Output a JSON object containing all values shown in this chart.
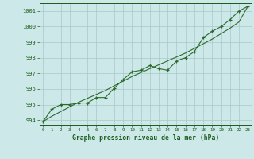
{
  "x_data": [
    0,
    1,
    2,
    3,
    4,
    5,
    6,
    7,
    8,
    9,
    10,
    11,
    12,
    13,
    14,
    15,
    16,
    17,
    18,
    19,
    20,
    21,
    22,
    23
  ],
  "y_measured": [
    993.9,
    994.7,
    995.0,
    995.0,
    995.1,
    995.1,
    995.45,
    995.45,
    996.05,
    996.6,
    997.1,
    997.2,
    997.5,
    997.3,
    997.2,
    997.8,
    998.0,
    998.4,
    999.3,
    999.7,
    1000.0,
    1000.45,
    1001.0,
    1001.3
  ],
  "y_trend": [
    993.9,
    994.25,
    994.55,
    994.85,
    995.15,
    995.4,
    995.65,
    995.9,
    996.2,
    996.5,
    996.8,
    997.05,
    997.3,
    997.55,
    997.8,
    998.05,
    998.3,
    998.6,
    998.9,
    999.2,
    999.55,
    999.9,
    1000.3,
    1001.3
  ],
  "line_color": "#2d6a2d",
  "bg_color": "#cce8e8",
  "grid_color": "#aac8c8",
  "xlabel": "Graphe pression niveau de la mer (hPa)",
  "ylim": [
    993.7,
    1001.5
  ],
  "xlim": [
    -0.4,
    23.4
  ],
  "yticks": [
    994,
    995,
    996,
    997,
    998,
    999,
    1000,
    1001
  ],
  "xticks": [
    0,
    1,
    2,
    3,
    4,
    5,
    6,
    7,
    8,
    9,
    10,
    11,
    12,
    13,
    14,
    15,
    16,
    17,
    18,
    19,
    20,
    21,
    22,
    23
  ]
}
